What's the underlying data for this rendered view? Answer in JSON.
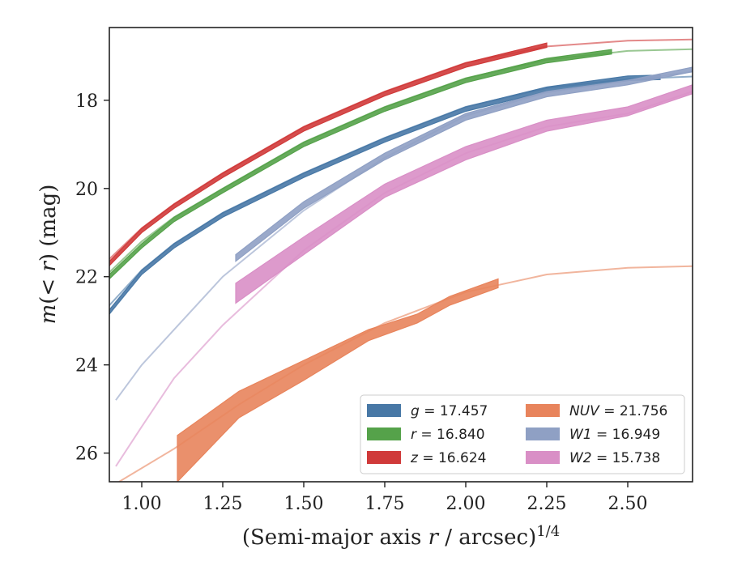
{
  "chart_data": {
    "type": "line",
    "xlabel": "(Semi-major axis r / arcsec)^1/4",
    "ylabel": "m(< r) (mag)",
    "xlim": [
      0.9,
      2.7
    ],
    "ylim": [
      26.65,
      16.35
    ],
    "y_inverted": true,
    "grid": false,
    "legend_position": "bottom-right",
    "xticks": [
      "1.00",
      "1.25",
      "1.50",
      "1.75",
      "2.00",
      "2.25",
      "2.50"
    ],
    "yticks": [
      "18",
      "20",
      "22",
      "24",
      "26"
    ],
    "series": [
      {
        "name": "g = 17.457",
        "color": "#4878a6",
        "obs_band_width": 0.05,
        "observed": [
          [
            0.9,
            22.8
          ],
          [
            1.0,
            21.9
          ],
          [
            1.1,
            21.3
          ],
          [
            1.25,
            20.6
          ],
          [
            1.5,
            19.7
          ],
          [
            1.75,
            18.9
          ],
          [
            2.0,
            18.2
          ],
          [
            2.25,
            17.75
          ],
          [
            2.5,
            17.5
          ],
          [
            2.6,
            17.48
          ]
        ],
        "model": [
          [
            0.9,
            22.65
          ],
          [
            1.0,
            21.85
          ],
          [
            1.1,
            21.25
          ],
          [
            1.25,
            20.55
          ],
          [
            1.5,
            19.65
          ],
          [
            1.75,
            18.85
          ],
          [
            2.0,
            18.15
          ],
          [
            2.25,
            17.72
          ],
          [
            2.5,
            17.52
          ],
          [
            2.7,
            17.46
          ]
        ]
      },
      {
        "name": "r = 16.840",
        "color": "#55a24a",
        "obs_band_width": 0.05,
        "observed": [
          [
            0.9,
            22.0
          ],
          [
            1.0,
            21.3
          ],
          [
            1.1,
            20.7
          ],
          [
            1.25,
            20.05
          ],
          [
            1.5,
            19.0
          ],
          [
            1.75,
            18.2
          ],
          [
            2.0,
            17.55
          ],
          [
            2.25,
            17.1
          ],
          [
            2.45,
            16.9
          ]
        ],
        "model": [
          [
            0.9,
            21.9
          ],
          [
            1.0,
            21.2
          ],
          [
            1.1,
            20.65
          ],
          [
            1.25,
            20.0
          ],
          [
            1.5,
            18.95
          ],
          [
            1.75,
            18.15
          ],
          [
            2.0,
            17.5
          ],
          [
            2.25,
            17.08
          ],
          [
            2.5,
            16.88
          ],
          [
            2.7,
            16.84
          ]
        ]
      },
      {
        "name": "z = 16.624",
        "color": "#d03a3a",
        "obs_band_width": 0.05,
        "observed": [
          [
            0.9,
            21.7
          ],
          [
            1.0,
            20.95
          ],
          [
            1.1,
            20.4
          ],
          [
            1.25,
            19.7
          ],
          [
            1.5,
            18.65
          ],
          [
            1.75,
            17.85
          ],
          [
            2.0,
            17.2
          ],
          [
            2.25,
            16.75
          ]
        ],
        "model": [
          [
            0.9,
            21.6
          ],
          [
            1.0,
            20.9
          ],
          [
            1.1,
            20.35
          ],
          [
            1.25,
            19.65
          ],
          [
            1.5,
            18.6
          ],
          [
            1.75,
            17.8
          ],
          [
            2.0,
            17.15
          ],
          [
            2.25,
            16.78
          ],
          [
            2.5,
            16.65
          ],
          [
            2.7,
            16.62
          ]
        ]
      },
      {
        "name": "NUV = 21.756",
        "color": "#e8845c",
        "observed_upper": [
          [
            1.11,
            25.6
          ],
          [
            1.3,
            24.6
          ],
          [
            1.5,
            23.9
          ],
          [
            1.7,
            23.2
          ],
          [
            1.85,
            22.85
          ],
          [
            1.95,
            22.45
          ],
          [
            2.1,
            22.05
          ]
        ],
        "observed_lower": [
          [
            1.11,
            26.65
          ],
          [
            1.3,
            25.2
          ],
          [
            1.5,
            24.35
          ],
          [
            1.7,
            23.45
          ],
          [
            1.85,
            23.05
          ],
          [
            1.95,
            22.65
          ],
          [
            2.1,
            22.25
          ]
        ],
        "model": [
          [
            0.93,
            26.65
          ],
          [
            1.1,
            25.9
          ],
          [
            1.3,
            24.9
          ],
          [
            1.5,
            24.0
          ],
          [
            1.75,
            23.05
          ],
          [
            2.0,
            22.35
          ],
          [
            2.25,
            21.95
          ],
          [
            2.5,
            21.8
          ],
          [
            2.7,
            21.76
          ]
        ]
      },
      {
        "name": "W1 = 16.949",
        "color": "#8fa0c4",
        "observed_upper": [
          [
            1.29,
            21.5
          ],
          [
            1.5,
            20.3
          ],
          [
            1.75,
            19.2
          ],
          [
            2.0,
            18.3
          ],
          [
            2.25,
            17.8
          ],
          [
            2.5,
            17.55
          ],
          [
            2.7,
            17.25
          ]
        ],
        "observed_lower": [
          [
            1.29,
            21.65
          ],
          [
            1.5,
            20.45
          ],
          [
            1.75,
            19.35
          ],
          [
            2.0,
            18.45
          ],
          [
            2.25,
            17.92
          ],
          [
            2.5,
            17.65
          ],
          [
            2.7,
            17.35
          ]
        ],
        "model": [
          [
            0.92,
            24.8
          ],
          [
            1.0,
            24.0
          ],
          [
            1.1,
            23.2
          ],
          [
            1.25,
            22.0
          ],
          [
            1.5,
            20.5
          ],
          [
            1.75,
            19.3
          ],
          [
            2.0,
            18.35
          ],
          [
            2.25,
            17.82
          ],
          [
            2.5,
            17.55
          ],
          [
            2.7,
            17.35
          ]
        ]
      },
      {
        "name": "W2 = 15.738",
        "color": "#d98fc6",
        "observed_upper": [
          [
            1.29,
            22.15
          ],
          [
            1.5,
            21.1
          ],
          [
            1.75,
            19.9
          ],
          [
            2.0,
            19.05
          ],
          [
            2.25,
            18.45
          ],
          [
            2.5,
            18.15
          ],
          [
            2.7,
            17.65
          ]
        ],
        "observed_lower": [
          [
            1.29,
            22.6
          ],
          [
            1.5,
            21.5
          ],
          [
            1.75,
            20.2
          ],
          [
            2.0,
            19.35
          ],
          [
            2.25,
            18.7
          ],
          [
            2.5,
            18.35
          ],
          [
            2.7,
            17.85
          ]
        ],
        "model": [
          [
            0.92,
            26.3
          ],
          [
            1.0,
            25.4
          ],
          [
            1.1,
            24.3
          ],
          [
            1.25,
            23.1
          ],
          [
            1.5,
            21.4
          ],
          [
            1.75,
            20.1
          ],
          [
            2.0,
            19.2
          ],
          [
            2.25,
            18.6
          ],
          [
            2.5,
            18.3
          ],
          [
            2.7,
            17.8
          ]
        ]
      }
    ]
  }
}
